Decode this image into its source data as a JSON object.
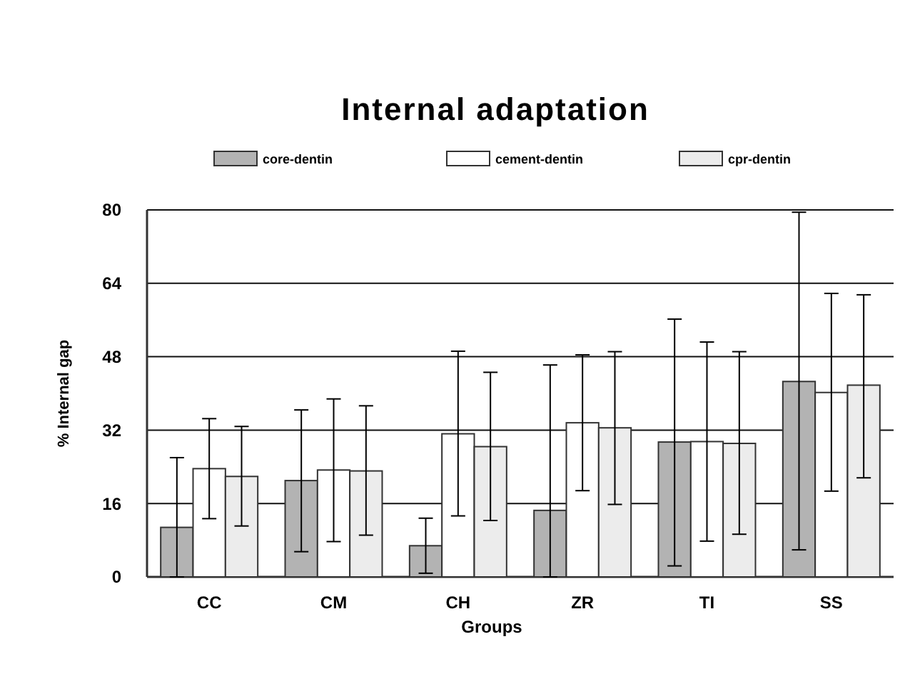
{
  "chart_data": {
    "type": "bar",
    "title": "Internal adaptation",
    "xlabel": "Groups",
    "ylabel": "% Internal gap",
    "categories": [
      "CC",
      "CM",
      "CH",
      "ZR",
      "TI",
      "SS"
    ],
    "series": [
      {
        "name": "core-dentin",
        "color": "#b3b3b3",
        "values": [
          10.8,
          21.0,
          6.8,
          14.5,
          29.4,
          42.6
        ],
        "errors": [
          [
            0,
            26.0
          ],
          [
            5.5,
            36.4
          ],
          [
            0.8,
            12.8
          ],
          [
            0,
            46.2
          ],
          [
            2.4,
            56.2
          ],
          [
            5.9,
            79.5
          ]
        ]
      },
      {
        "name": "cement-dentin",
        "color": "#ffffff",
        "values": [
          23.6,
          23.3,
          31.2,
          33.6,
          29.5,
          40.2
        ],
        "errors": [
          [
            12.7,
            34.5
          ],
          [
            7.7,
            38.8
          ],
          [
            13.3,
            49.2
          ],
          [
            18.8,
            48.4
          ],
          [
            7.8,
            51.2
          ],
          [
            18.7,
            61.8
          ]
        ]
      },
      {
        "name": "cpr-dentin",
        "color": "#ececec",
        "values": [
          21.9,
          23.1,
          28.4,
          32.5,
          29.1,
          41.8
        ],
        "errors": [
          [
            11.1,
            32.8
          ],
          [
            9.1,
            37.3
          ],
          [
            12.3,
            44.6
          ],
          [
            15.8,
            49.1
          ],
          [
            9.3,
            49.1
          ],
          [
            21.6,
            61.5
          ]
        ]
      }
    ],
    "ylim": [
      0,
      80
    ],
    "yticks": [
      0,
      16,
      32,
      48,
      64,
      80
    ],
    "grid": "y",
    "legend": "top"
  }
}
